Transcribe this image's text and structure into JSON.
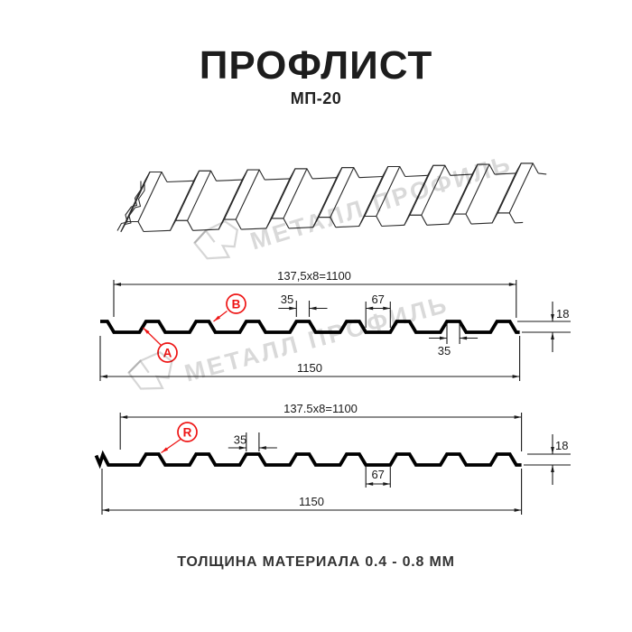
{
  "title": "ПРОФЛИСТ",
  "subtitle": "МП-20",
  "footer": "ТОЛЩИНА МАТЕРИАЛА 0.4 - 0.8 ММ",
  "watermark": {
    "text": "МЕТАЛЛ ПРОФИЛЬ"
  },
  "colors": {
    "line": "#000000",
    "dim_line": "#1a1a1a",
    "red": "#ee1515",
    "watermark_gray": "#d9d9d9"
  },
  "profile_top": {
    "pitch_label": "137,5x8=1100",
    "rib_top_label": "35",
    "valley_label": "67",
    "height_label": "18",
    "rib_top_label_2": "35",
    "width_label": "1150",
    "marker_a": "A",
    "marker_b": "B"
  },
  "profile_bottom": {
    "pitch_label": "137.5x8=1100",
    "rib_top_label": "35",
    "valley_label": "67",
    "height_label": "18",
    "width_label": "1150",
    "marker_r": "R"
  }
}
